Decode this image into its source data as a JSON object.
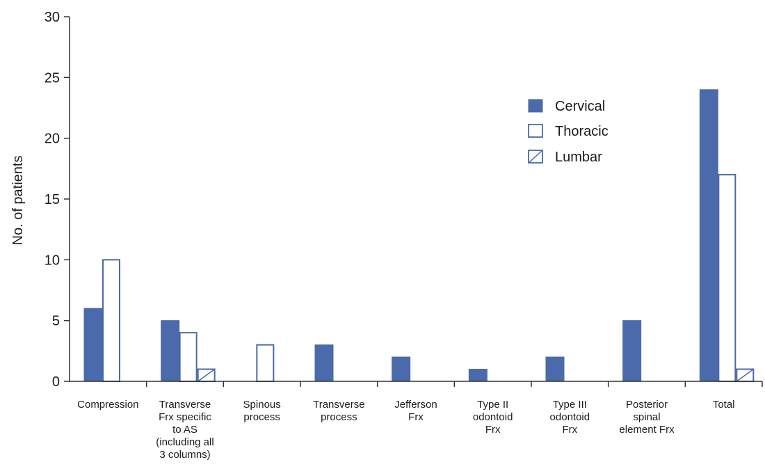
{
  "chart_data": {
    "type": "bar",
    "title": "",
    "xlabel": "",
    "ylabel": "No. of patients",
    "ylim": [
      0,
      30
    ],
    "yticks": [
      "0",
      "5",
      "10",
      "15",
      "20",
      "25",
      "30"
    ],
    "grid": false,
    "legend_position": "upper-right",
    "categories": [
      "Compression",
      "Transverse\nFrx specific\nto AS\n(including all\n3 columns)",
      "Spinous\nprocess",
      "Transverse\nprocess",
      "Jefferson\nFrx",
      "Type II\nodontoid\nFrx",
      "Type III\nodontoid\nFrx",
      "Posterior\nspinal\nelement Frx",
      "Total"
    ],
    "series": [
      {
        "name": "Cervical",
        "style": "solid",
        "color": "#4a6aab",
        "values": [
          6,
          5,
          0,
          3,
          2,
          1,
          2,
          5,
          24
        ]
      },
      {
        "name": "Thoracic",
        "style": "outline",
        "color": "#4a6aab",
        "values": [
          10,
          4,
          3,
          0,
          0,
          0,
          0,
          0,
          17
        ]
      },
      {
        "name": "Lumbar",
        "style": "hatched",
        "color": "#4a6aab",
        "values": [
          0,
          1,
          0,
          0,
          0,
          0,
          0,
          0,
          1
        ]
      }
    ]
  }
}
